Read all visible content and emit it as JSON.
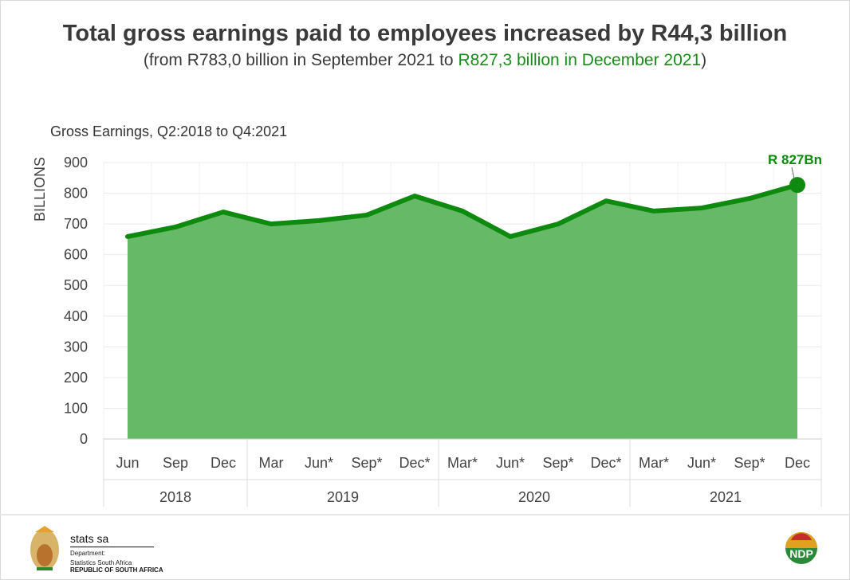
{
  "header": {
    "title": "Total gross earnings paid to employees increased by R44,3 billion",
    "subtitle_prefix": "(from R783,0 billion in September 2021 to ",
    "subtitle_highlight": "R827,3 billion in December 2021",
    "subtitle_suffix": ")"
  },
  "chart_data": {
    "type": "area",
    "title": "Gross Earnings, Q2:2018 to Q4:2021",
    "ylabel": "BILLIONS",
    "xlabel": "",
    "ylim": [
      0,
      900
    ],
    "yticks": [
      0,
      100,
      200,
      300,
      400,
      500,
      600,
      700,
      800,
      900
    ],
    "grid": true,
    "categories": [
      "Jun",
      "Sep",
      "Dec",
      "Mar",
      "Jun*",
      "Sep*",
      "Dec*",
      "Mar*",
      "Jun*",
      "Sep*",
      "Dec*",
      "Mar*",
      "Jun*",
      "Sep*",
      "Dec"
    ],
    "years": [
      {
        "label": "2018",
        "count": 3
      },
      {
        "label": "2019",
        "count": 4
      },
      {
        "label": "2020",
        "count": 4
      },
      {
        "label": "2021",
        "count": 4
      }
    ],
    "values": [
      659,
      690,
      739,
      700,
      711,
      729,
      791,
      742,
      659,
      700,
      775,
      742,
      752,
      783,
      827
    ],
    "annotation": "R 827Bn",
    "colors": {
      "line": "#0e8a0e",
      "fill": "#66b966"
    }
  },
  "footer": {
    "logo_name": "stats sa",
    "dept_line1": "Department:",
    "dept_line2": "Statistics South Africa",
    "dept_line3": "REPUBLIC OF SOUTH AFRICA",
    "ndp_logo": "NDP 2030"
  }
}
